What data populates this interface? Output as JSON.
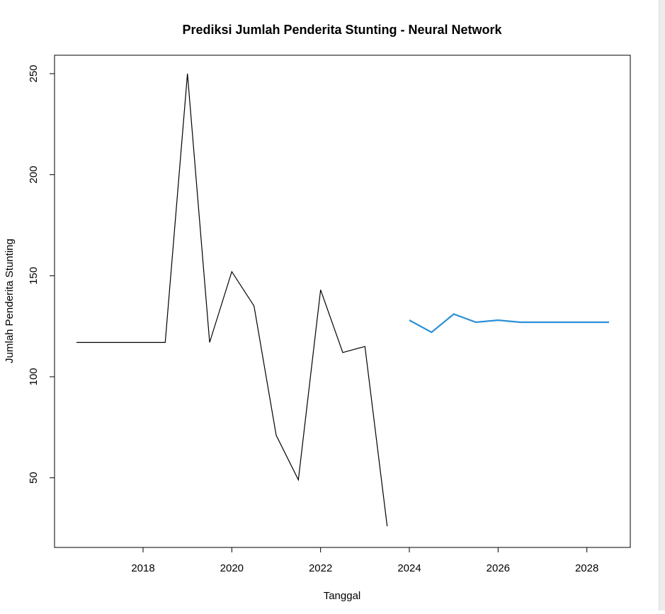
{
  "chart_data": {
    "type": "line",
    "title": "Prediksi Jumlah Penderita Stunting - Neural Network",
    "xlabel": "Tanggal",
    "ylabel": "Jumlah Penderita Stunting",
    "xlim": [
      2016.5,
      2028.5
    ],
    "ylim": [
      25,
      250
    ],
    "x_ticks": [
      2018,
      2020,
      2022,
      2024,
      2026,
      2028
    ],
    "y_ticks": [
      50,
      100,
      150,
      200,
      250
    ],
    "grid": false,
    "legend": "none",
    "series": [
      {
        "color": "#000000",
        "x": [
          2016.5,
          2017.0,
          2017.5,
          2018.0,
          2018.5,
          2019.0,
          2019.5,
          2020.0,
          2020.5,
          2021.0,
          2021.5,
          2022.0,
          2022.5,
          2023.0,
          2023.5
        ],
        "y": [
          117,
          117,
          117,
          117,
          117,
          250,
          117,
          152,
          135,
          71,
          49,
          143,
          112,
          115,
          26
        ]
      },
      {
        "color": "#2b8fd6",
        "x": [
          2024.0,
          2024.5,
          2025.0,
          2025.5,
          2026.0,
          2026.5,
          2027.0,
          2027.5,
          2028.0,
          2028.5
        ],
        "y": [
          128,
          122,
          131,
          127,
          128,
          127,
          127,
          127,
          127,
          127
        ]
      }
    ]
  }
}
